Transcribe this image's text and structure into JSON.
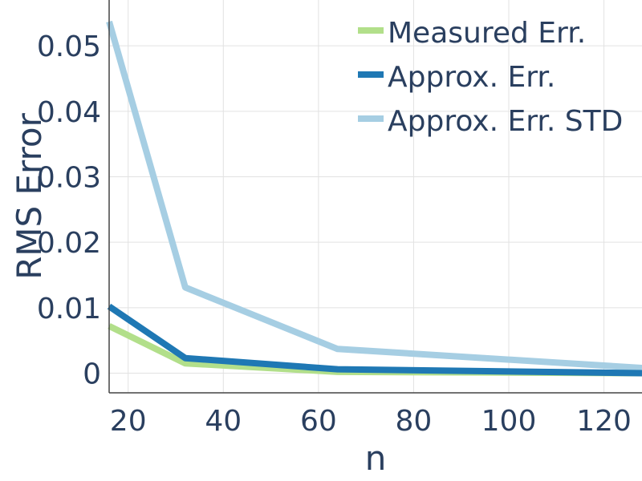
{
  "chart_data": {
    "type": "line",
    "xlabel": "n",
    "ylabel": "RMS Error",
    "xlim": [
      16,
      128
    ],
    "ylim": [
      -0.003,
      0.057
    ],
    "x_ticks": [
      20,
      40,
      60,
      80,
      100,
      120
    ],
    "x_tick_labels": [
      "20",
      "40",
      "60",
      "80",
      "100",
      "120"
    ],
    "y_ticks": [
      0,
      0.01,
      0.02,
      0.03,
      0.04,
      0.05
    ],
    "y_tick_labels": [
      "0",
      "0.01",
      "0.02",
      "0.03",
      "0.04",
      "0.05"
    ],
    "grid": true,
    "legend_position": "top-right",
    "x": [
      16,
      32,
      64,
      128
    ],
    "series": [
      {
        "name": "Measured Err.",
        "color": "#b2df8a",
        "values": [
          0.0072,
          0.0015,
          0.0002,
          0.0
        ]
      },
      {
        "name": "Approx. Err.",
        "color": "#1f78b4",
        "values": [
          0.0102,
          0.0023,
          0.0006,
          0.0
        ]
      },
      {
        "name": "Approx. Err. STD",
        "color": "#a6cee3",
        "values": [
          0.0537,
          0.0131,
          0.0037,
          0.0008
        ]
      }
    ]
  }
}
